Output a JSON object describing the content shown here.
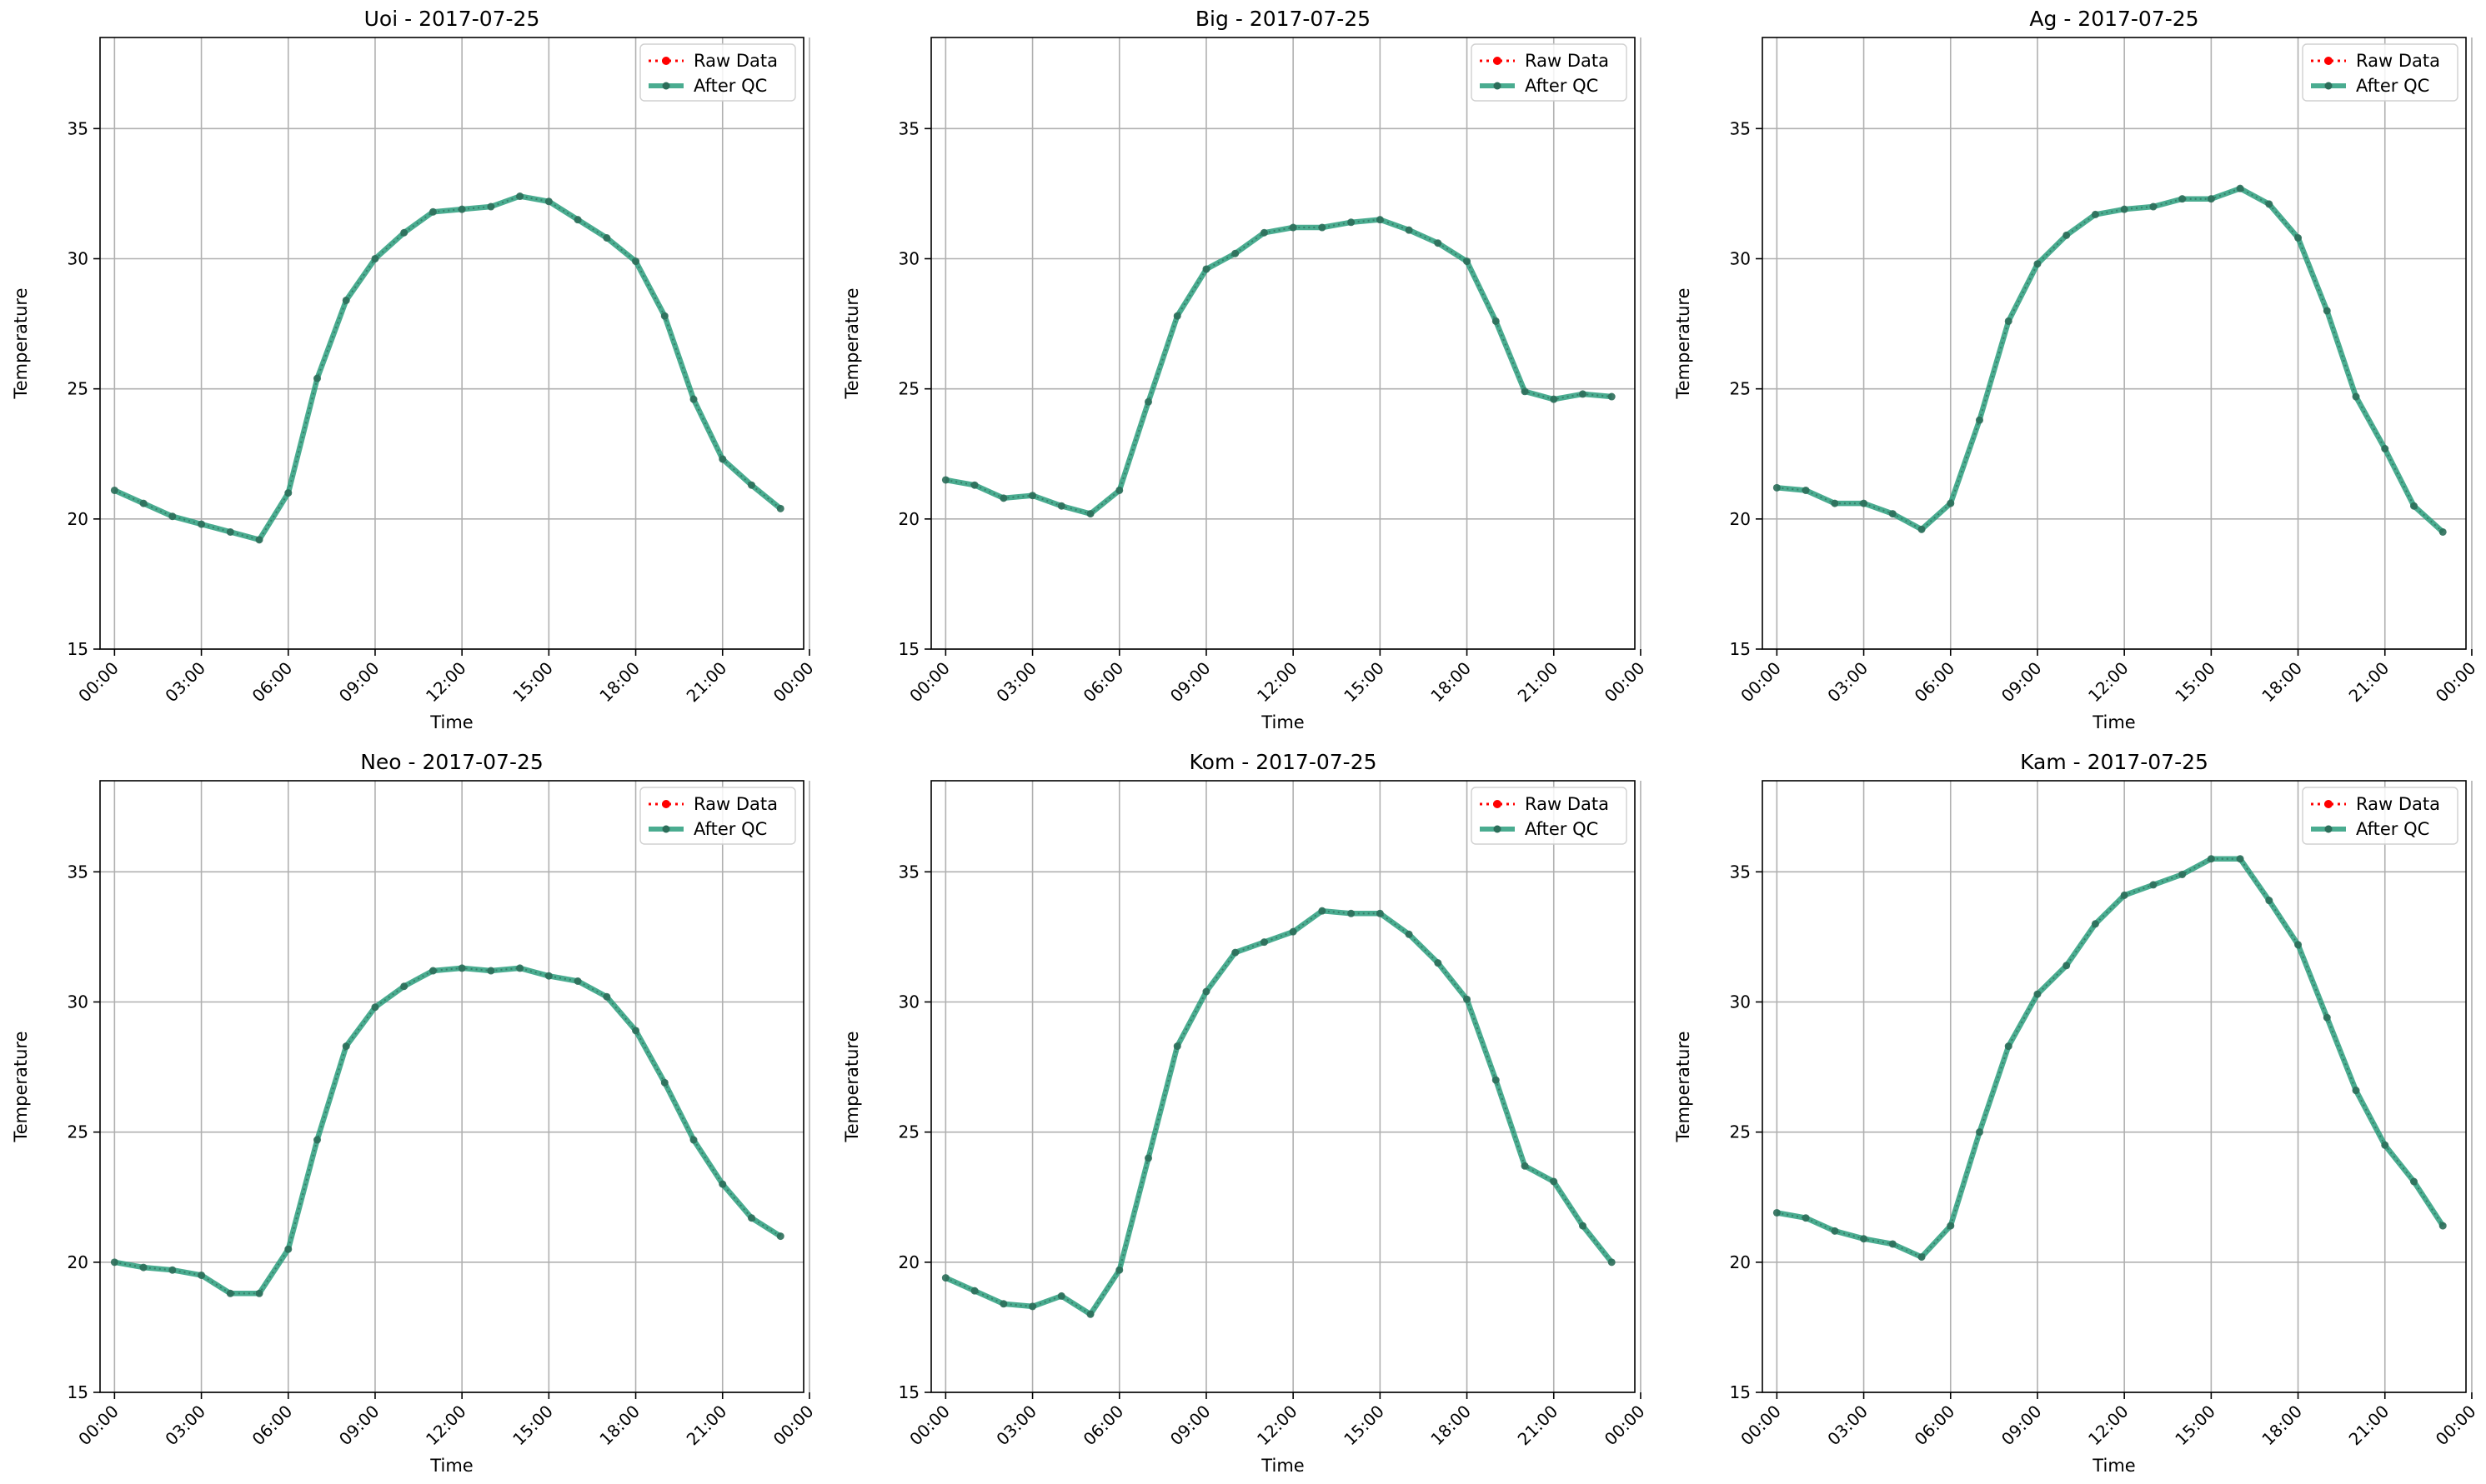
{
  "figure": {
    "x_tick_labels": [
      "00:00",
      "03:00",
      "06:00",
      "09:00",
      "12:00",
      "15:00",
      "18:00",
      "21:00",
      "00:00"
    ],
    "y_tick_labels": [
      "15",
      "20",
      "25",
      "30",
      "35"
    ],
    "xlabel": "Time",
    "ylabel": "Temperature",
    "legend": {
      "raw_label": "Raw Data",
      "qc_label": "After QC",
      "placement": "upper right"
    },
    "colors": {
      "raw": "#ff0000",
      "qc": "#2a9d7d",
      "marker": "#2c6e5a",
      "grid": "#b0b0b0"
    }
  },
  "chart_data": [
    {
      "type": "line",
      "title": "Uoi - 2017-07-25",
      "xlabel": "Time",
      "ylabel": "Temperature",
      "x_unit": "hour of day",
      "xlim": [
        -0.5,
        23.8
      ],
      "ylim": [
        15,
        38.5
      ],
      "grid": true,
      "series": [
        {
          "name": "Raw Data",
          "values": [
            21.1,
            20.6,
            20.1,
            19.8,
            19.5,
            19.2,
            21.0,
            25.4,
            28.4,
            30.0,
            31.0,
            31.8,
            31.9,
            32.0,
            32.4,
            32.2,
            31.5,
            30.8,
            29.9,
            27.8,
            24.6,
            22.3,
            21.3,
            20.4
          ]
        },
        {
          "name": "After QC",
          "values": [
            21.1,
            20.6,
            20.1,
            19.8,
            19.5,
            19.2,
            21.0,
            25.4,
            28.4,
            30.0,
            31.0,
            31.8,
            31.9,
            32.0,
            32.4,
            32.2,
            31.5,
            30.8,
            29.9,
            27.8,
            24.6,
            22.3,
            21.3,
            20.4
          ]
        }
      ]
    },
    {
      "type": "line",
      "title": "Big - 2017-07-25",
      "xlabel": "Time",
      "ylabel": "Temperature",
      "x_unit": "hour of day",
      "xlim": [
        -0.5,
        23.8
      ],
      "ylim": [
        15,
        38.5
      ],
      "grid": true,
      "series": [
        {
          "name": "Raw Data",
          "values": [
            21.5,
            21.3,
            20.8,
            20.9,
            20.5,
            20.2,
            21.1,
            24.5,
            27.8,
            29.6,
            30.2,
            31.0,
            31.2,
            31.2,
            31.4,
            31.5,
            31.1,
            30.6,
            29.9,
            27.6,
            24.9,
            24.6,
            24.8,
            24.7
          ]
        },
        {
          "name": "After QC",
          "values": [
            21.5,
            21.3,
            20.8,
            20.9,
            20.5,
            20.2,
            21.1,
            24.5,
            27.8,
            29.6,
            30.2,
            31.0,
            31.2,
            31.2,
            31.4,
            31.5,
            31.1,
            30.6,
            29.9,
            27.6,
            24.9,
            24.6,
            24.8,
            24.7
          ]
        }
      ]
    },
    {
      "type": "line",
      "title": "Ag - 2017-07-25",
      "xlabel": "Time",
      "ylabel": "Temperature",
      "x_unit": "hour of day",
      "xlim": [
        -0.5,
        23.8
      ],
      "ylim": [
        15,
        38.5
      ],
      "grid": true,
      "series": [
        {
          "name": "Raw Data",
          "values": [
            21.2,
            21.1,
            20.6,
            20.6,
            20.2,
            19.6,
            20.6,
            23.8,
            27.6,
            29.8,
            30.9,
            31.7,
            31.9,
            32.0,
            32.3,
            32.3,
            32.7,
            32.1,
            30.8,
            28.0,
            24.7,
            22.7,
            20.5,
            19.5
          ]
        },
        {
          "name": "After QC",
          "values": [
            21.2,
            21.1,
            20.6,
            20.6,
            20.2,
            19.6,
            20.6,
            23.8,
            27.6,
            29.8,
            30.9,
            31.7,
            31.9,
            32.0,
            32.3,
            32.3,
            32.7,
            32.1,
            30.8,
            28.0,
            24.7,
            22.7,
            20.5,
            19.5
          ]
        }
      ]
    },
    {
      "type": "line",
      "title": "Neo - 2017-07-25",
      "xlabel": "Time",
      "ylabel": "Temperature",
      "x_unit": "hour of day",
      "xlim": [
        -0.5,
        23.8
      ],
      "ylim": [
        15,
        38.5
      ],
      "grid": true,
      "series": [
        {
          "name": "Raw Data",
          "values": [
            20.0,
            19.8,
            19.7,
            19.5,
            18.8,
            18.8,
            20.5,
            24.7,
            28.3,
            29.8,
            30.6,
            31.2,
            31.3,
            31.2,
            31.3,
            31.0,
            30.8,
            30.2,
            28.9,
            26.9,
            24.7,
            23.0,
            21.7,
            21.0
          ]
        },
        {
          "name": "After QC",
          "values": [
            20.0,
            19.8,
            19.7,
            19.5,
            18.8,
            18.8,
            20.5,
            24.7,
            28.3,
            29.8,
            30.6,
            31.2,
            31.3,
            31.2,
            31.3,
            31.0,
            30.8,
            30.2,
            28.9,
            26.9,
            24.7,
            23.0,
            21.7,
            21.0
          ]
        }
      ]
    },
    {
      "type": "line",
      "title": "Kom - 2017-07-25",
      "xlabel": "Time",
      "ylabel": "Temperature",
      "x_unit": "hour of day",
      "xlim": [
        -0.5,
        23.8
      ],
      "ylim": [
        15,
        38.5
      ],
      "grid": true,
      "series": [
        {
          "name": "Raw Data",
          "values": [
            19.4,
            18.9,
            18.4,
            18.3,
            18.7,
            18.0,
            19.7,
            24.0,
            28.3,
            30.4,
            31.9,
            32.3,
            32.7,
            33.5,
            33.4,
            33.4,
            32.6,
            31.5,
            30.1,
            27.0,
            23.7,
            23.1,
            21.4,
            20.0
          ]
        },
        {
          "name": "After QC",
          "values": [
            19.4,
            18.9,
            18.4,
            18.3,
            18.7,
            18.0,
            19.7,
            24.0,
            28.3,
            30.4,
            31.9,
            32.3,
            32.7,
            33.5,
            33.4,
            33.4,
            32.6,
            31.5,
            30.1,
            27.0,
            23.7,
            23.1,
            21.4,
            20.0
          ]
        }
      ]
    },
    {
      "type": "line",
      "title": "Kam - 2017-07-25",
      "xlabel": "Time",
      "ylabel": "Temperature",
      "x_unit": "hour of day",
      "xlim": [
        -0.5,
        23.8
      ],
      "ylim": [
        15,
        38.5
      ],
      "grid": true,
      "series": [
        {
          "name": "Raw Data",
          "values": [
            21.9,
            21.7,
            21.2,
            20.9,
            20.7,
            20.2,
            21.4,
            25.0,
            28.3,
            30.3,
            31.4,
            33.0,
            34.1,
            34.5,
            34.9,
            35.5,
            35.5,
            33.9,
            32.2,
            29.4,
            26.6,
            24.5,
            23.1,
            21.4
          ]
        },
        {
          "name": "After QC",
          "values": [
            21.9,
            21.7,
            21.2,
            20.9,
            20.7,
            20.2,
            21.4,
            25.0,
            28.3,
            30.3,
            31.4,
            33.0,
            34.1,
            34.5,
            34.9,
            35.5,
            35.5,
            33.9,
            32.2,
            29.4,
            26.6,
            24.5,
            23.1,
            21.4
          ]
        }
      ]
    }
  ]
}
